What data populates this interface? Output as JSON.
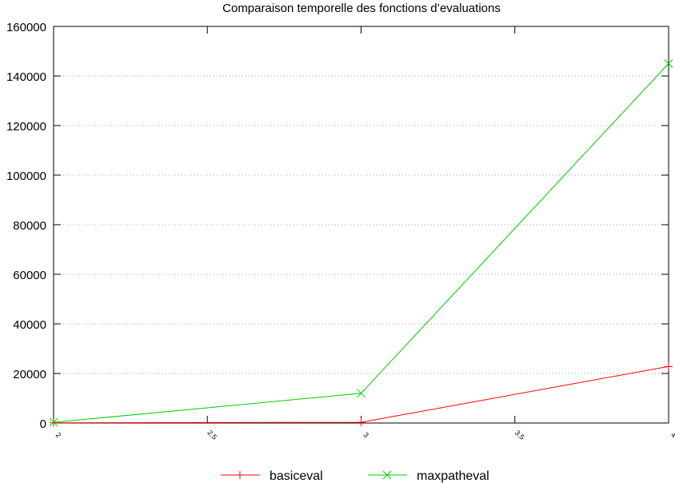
{
  "chart_data": {
    "type": "line",
    "title": "Comparaison temporelle des fonctions d’evaluations",
    "xlabel": "",
    "ylabel": "",
    "x": [
      2,
      3,
      4
    ],
    "xlim": [
      2,
      4
    ],
    "ylim": [
      0,
      160000
    ],
    "xticks": [
      2,
      2.5,
      3,
      3.5,
      4
    ],
    "xtick_labels": [
      "2",
      "2.5",
      "3",
      "3.5",
      "4"
    ],
    "yticks": [
      0,
      20000,
      40000,
      60000,
      80000,
      100000,
      120000,
      140000,
      160000
    ],
    "ytick_labels": [
      "0",
      "20000",
      "40000",
      "60000",
      "80000",
      "100000",
      "120000",
      "140000",
      "160000"
    ],
    "grid": {
      "horizontal": true,
      "vertical": false,
      "style": "dotted"
    },
    "legend_position": "bottom",
    "series": [
      {
        "name": "basiceval",
        "values": [
          100,
          300,
          22800
        ],
        "color": "#ff0000",
        "marker": "plus"
      },
      {
        "name": "maxpatheval",
        "values": [
          300,
          12000,
          145000
        ],
        "color": "#00cc00",
        "marker": "cross"
      }
    ]
  }
}
